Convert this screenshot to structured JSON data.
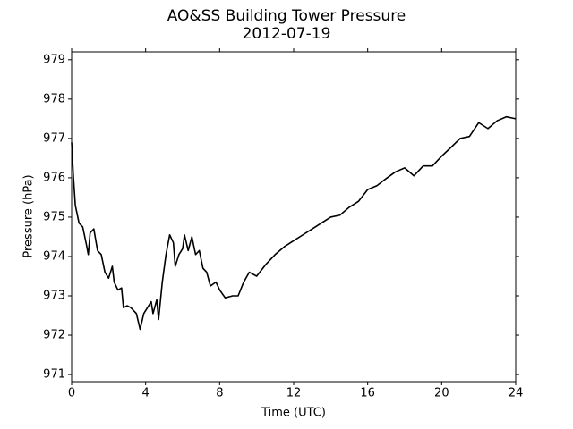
{
  "chart_data": {
    "type": "line",
    "title": "AO&SS Building Tower Pressure",
    "subtitle": "2012-07-19",
    "x_label": "Time (UTC)",
    "y_label": "Pressure (hPa)",
    "xlim": [
      0,
      24
    ],
    "xticks": [
      0,
      4,
      8,
      12,
      16,
      20,
      24
    ],
    "ylim": [
      970.82,
      979.2
    ],
    "yticks": [
      971,
      972,
      973,
      974,
      975,
      976,
      977,
      978,
      979
    ],
    "grid": false,
    "x": [
      0,
      0.1,
      0.2,
      0.4,
      0.6,
      0.8,
      0.9,
      1.0,
      1.2,
      1.4,
      1.6,
      1.8,
      2.0,
      2.2,
      2.3,
      2.5,
      2.7,
      2.8,
      3.0,
      3.2,
      3.5,
      3.7,
      3.9,
      4.1,
      4.3,
      4.4,
      4.6,
      4.7,
      4.9,
      5.1,
      5.3,
      5.5,
      5.6,
      5.8,
      6.0,
      6.1,
      6.3,
      6.5,
      6.7,
      6.9,
      7.1,
      7.3,
      7.5,
      7.8,
      8.0,
      8.3,
      8.7,
      9.0,
      9.3,
      9.6,
      10,
      10.5,
      11,
      11.5,
      12,
      12.5,
      13,
      13.5,
      14,
      14.5,
      15,
      15.5,
      16,
      16.5,
      17,
      17.5,
      18,
      18.5,
      19,
      19.5,
      20,
      20.5,
      21,
      21.5,
      22,
      22.5,
      23,
      23.5,
      24
    ],
    "series": [
      {
        "name": "Pressure",
        "color": "#000000",
        "values": [
          976.9,
          976.0,
          975.3,
          974.85,
          974.75,
          974.3,
          974.05,
          974.6,
          974.7,
          974.15,
          974.05,
          973.6,
          973.45,
          973.75,
          973.35,
          973.15,
          973.2,
          972.7,
          972.75,
          972.7,
          972.55,
          972.15,
          972.55,
          972.7,
          972.85,
          972.55,
          972.9,
          972.4,
          973.35,
          974.05,
          974.55,
          974.35,
          973.75,
          974.05,
          974.2,
          974.55,
          974.15,
          974.5,
          974.05,
          974.15,
          973.7,
          973.6,
          973.25,
          973.35,
          973.15,
          972.95,
          973.0,
          973.0,
          973.35,
          973.6,
          973.5,
          973.8,
          974.05,
          974.25,
          974.4,
          974.55,
          974.7,
          974.85,
          975.0,
          975.05,
          975.25,
          975.4,
          975.7,
          975.8,
          975.98,
          976.15,
          976.25,
          976.05,
          976.3,
          976.3,
          976.55,
          976.77,
          977.0,
          977.05,
          977.4,
          977.25,
          977.45,
          977.55,
          977.5
        ]
      }
    ]
  }
}
